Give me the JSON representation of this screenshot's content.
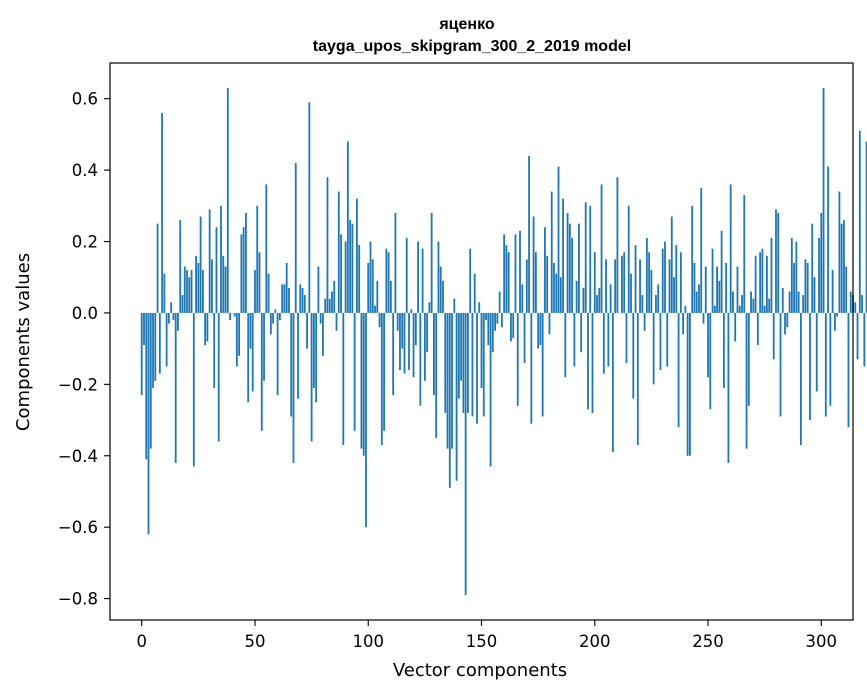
{
  "chart_data": {
    "type": "bar",
    "title_line1": "яценко",
    "title_line2": "tayga_upos_skipgram_300_2_2019 model",
    "xlabel": "Vector components",
    "ylabel": "Components values",
    "xlim": [
      -14,
      314
    ],
    "ylim": [
      -0.86,
      0.7
    ],
    "xticks": [
      0,
      50,
      100,
      150,
      200,
      250,
      300
    ],
    "xtick_labels": [
      "0",
      "50",
      "100",
      "150",
      "200",
      "250",
      "300"
    ],
    "yticks": [
      0.6,
      0.4,
      0.2,
      0.0,
      -0.2,
      -0.4,
      -0.6,
      -0.8
    ],
    "ytick_labels": [
      "0.6",
      "0.4",
      "0.2",
      "0.0",
      "−0.2",
      "−0.4",
      "−0.6",
      "−0.8"
    ],
    "color": "#1f77b4",
    "values": [
      -0.23,
      -0.09,
      -0.41,
      -0.62,
      -0.38,
      -0.21,
      -0.19,
      0.25,
      -0.17,
      0.56,
      0.11,
      -0.15,
      -0.03,
      0.03,
      -0.02,
      -0.42,
      -0.05,
      0.26,
      0.05,
      0.13,
      0.12,
      0.1,
      0.12,
      -0.43,
      0.16,
      0.14,
      0.27,
      0.12,
      -0.09,
      -0.08,
      0.29,
      0.15,
      -0.21,
      0.24,
      -0.36,
      0.3,
      0.16,
      0.13,
      0.63,
      -0.02,
      0.0,
      -0.01,
      -0.15,
      -0.12,
      0.22,
      0.24,
      0.28,
      -0.25,
      -0.1,
      -0.22,
      0.12,
      0.3,
      0.17,
      -0.33,
      -0.19,
      0.36,
      0.11,
      -0.06,
      -0.03,
      0.01,
      -0.23,
      -0.02,
      0.08,
      0.08,
      0.14,
      0.07,
      -0.29,
      -0.42,
      0.42,
      -0.24,
      0.08,
      0.07,
      0.05,
      -0.1,
      0.59,
      -0.36,
      -0.21,
      -0.25,
      0.13,
      -0.03,
      -0.12,
      0.04,
      0.38,
      0.04,
      0.06,
      0.09,
      -0.05,
      0.34,
      0.22,
      -0.37,
      0.2,
      0.48,
      0.26,
      0.25,
      -0.33,
      0.32,
      0.19,
      -0.38,
      -0.4,
      -0.6,
      0.14,
      0.2,
      0.15,
      0.02,
      0.09,
      -0.04,
      -0.37,
      -0.33,
      0.18,
      0.17,
      0.09,
      -0.23,
      0.28,
      -0.05,
      -0.16,
      -0.1,
      -0.17,
      0.21,
      -0.16,
      0.01,
      -0.18,
      -0.09,
      0.2,
      -0.26,
      0.18,
      -0.19,
      -0.11,
      0.03,
      0.28,
      -0.23,
      -0.35,
      0.2,
      0.13,
      0.09,
      -0.28,
      -0.38,
      -0.49,
      -0.38,
      0.04,
      -0.47,
      -0.24,
      -0.19,
      -0.28,
      -0.79,
      -0.28,
      0.18,
      -0.29,
      0.11,
      -0.31,
      0.03,
      -0.21,
      -0.29,
      -0.02,
      -0.09,
      -0.43,
      -0.11,
      -0.05,
      -0.03,
      0.06,
      -0.04,
      0.22,
      0.19,
      0.17,
      -0.08,
      -0.07,
      0.22,
      -0.26,
      0.23,
      0.08,
      -0.14,
      0.15,
      0.44,
      -0.31,
      0.27,
      0.17,
      -0.1,
      -0.09,
      -0.29,
      0.24,
      0.16,
      -0.06,
      0.34,
      0.14,
      0.11,
      0.41,
      0.1,
      0.32,
      -0.18,
      0.28,
      0.25,
      0.21,
      -0.15,
      0.09,
      0.25,
      -0.11,
      0.07,
      0.31,
      -0.27,
      0.3,
      -0.28,
      0.17,
      0.05,
      0.07,
      0.36,
      -0.17,
      0.15,
      -0.15,
      0.08,
      -0.39,
      0.15,
      0.38,
      0.0,
      0.16,
      0.17,
      -0.14,
      0.3,
      0.11,
      -0.24,
      0.19,
      -0.37,
      0.15,
      0.05,
      -0.05,
      0.21,
      0.17,
      0.12,
      -0.2,
      0.05,
      0.08,
      -0.16,
      0.18,
      0.2,
      -0.15,
      0.15,
      0.27,
      0.1,
      0.19,
      -0.32,
      0.17,
      -0.06,
      0.02,
      -0.4,
      -0.4,
      0.3,
      0.14,
      0.06,
      0.08,
      0.35,
      -0.03,
      0.13,
      -0.18,
      -0.27,
      0.18,
      0.02,
      0.13,
      0.09,
      0.23,
      -0.21,
      0.14,
      -0.42,
      0.36,
      0.06,
      -0.08,
      0.13,
      0.02,
      0.05,
      0.33,
      -0.38,
      -0.26,
      0.06,
      0.04,
      0.16,
      -0.09,
      0.17,
      0.18,
      0.02,
      0.16,
      0.04,
      0.21,
      -0.13,
      0.29,
      0.28,
      -0.29,
      0.07,
      -0.06,
      -0.04,
      0.06,
      0.21,
      0.14,
      0.2,
      0.06,
      -0.37,
      0.05,
      0.15,
      0.14,
      -0.3,
      0.25,
      0.1,
      -0.22,
      0.21,
      0.28,
      0.63,
      -0.29,
      0.41,
      -0.26,
      0.12,
      -0.05,
      -0.01,
      0.34,
      0.25,
      0.26,
      0.13,
      -0.32,
      0.06,
      0.05,
      0.03,
      -0.13,
      0.51,
      0.05,
      -0.15,
      0.48,
      -0.07
    ]
  }
}
